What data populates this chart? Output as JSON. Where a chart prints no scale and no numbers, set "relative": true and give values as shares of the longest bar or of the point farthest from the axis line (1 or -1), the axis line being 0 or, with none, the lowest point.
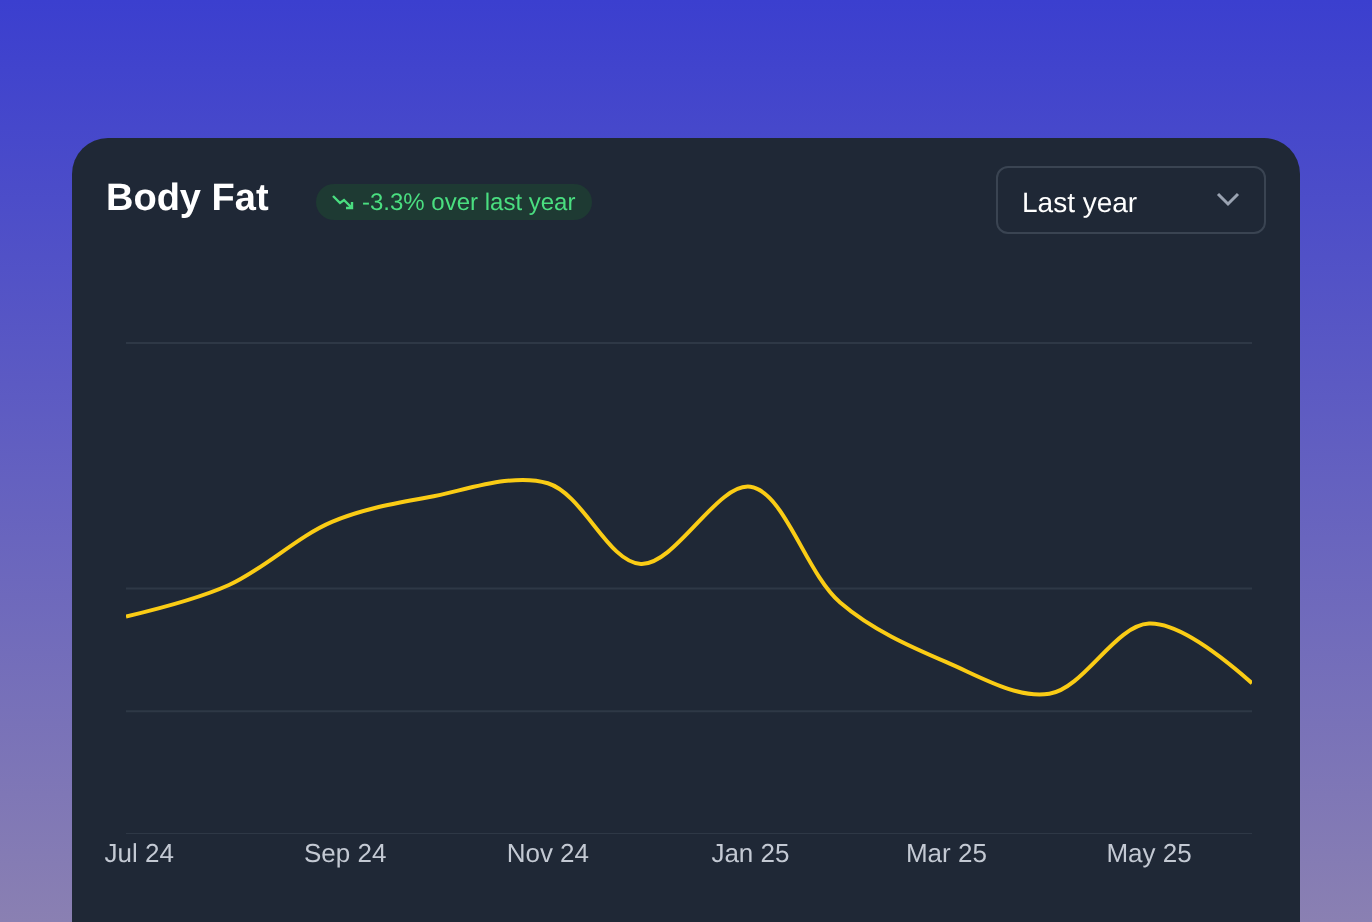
{
  "chart_data": {
    "type": "line",
    "title": "Body Fat",
    "subtitle": "-3.3% over last year",
    "annotations": [
      "Last year"
    ],
    "relative": true,
    "marker": "none",
    "line_style": "solid",
    "ref_lines": [
      {
        "axis": "y",
        "value": 0,
        "color": "#2e3846"
      },
      {
        "axis": "y",
        "value": 0.35,
        "color": "#2e3846"
      },
      {
        "axis": "y",
        "value": 0.7,
        "color": "#2e3846"
      },
      {
        "axis": "y",
        "value": 1.4,
        "color": "#2e3846"
      }
    ],
    "xlim": [
      "2024-06-27",
      "2025-06-01"
    ],
    "xticks": [
      {
        "value": "2024-07-01",
        "label": "Jul 24"
      },
      {
        "value": "2024-09-01",
        "label": "Sep 24"
      },
      {
        "value": "2024-11-01",
        "label": "Nov 24"
      },
      {
        "value": "2025-01-01",
        "label": "Jan 25"
      },
      {
        "value": "2025-03-01",
        "label": "Mar 25"
      },
      {
        "value": "2025-05-01",
        "label": "May 25"
      }
    ],
    "x": [
      "2024-06-27",
      "2024-07-28",
      "2024-08-28",
      "2024-09-26",
      "2024-11-01",
      "2024-11-29",
      "2025-01-01",
      "2025-01-28",
      "2025-03-01",
      "2025-04-01",
      "2025-05-01",
      "2025-06-01"
    ],
    "series": [
      {
        "color": "#facc15",
        "values": [
          0.62,
          0.71,
          0.89,
          0.96,
          1,
          0.77,
          0.99,
          0.66,
          0.49,
          0.4,
          0.6,
          0.43
        ]
      }
    ]
  }
}
